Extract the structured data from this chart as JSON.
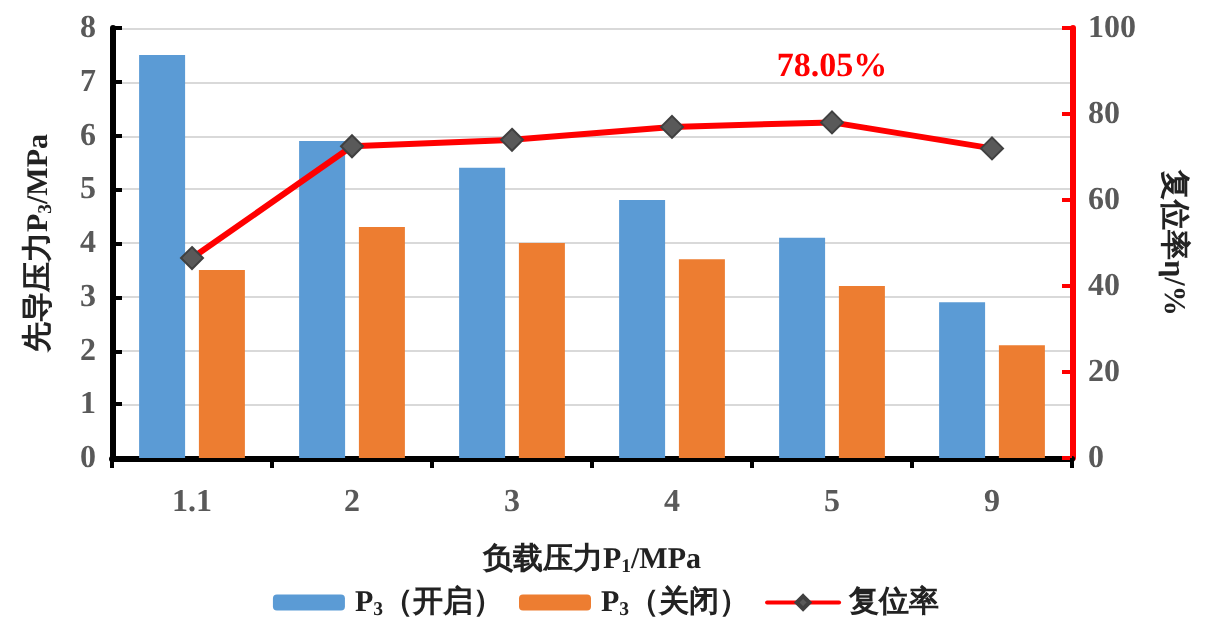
{
  "chart_data": {
    "type": "bar",
    "categories": [
      "1.1",
      "2",
      "3",
      "4",
      "5",
      "9"
    ],
    "series": [
      {
        "name": "P$_{3}$（开启）",
        "color": "#5b9bd5",
        "values": [
          7.5,
          5.9,
          5.4,
          4.8,
          4.1,
          2.9
        ]
      },
      {
        "name": "P$_{3}$（关闭）",
        "color": "#ed7d31",
        "values": [
          3.5,
          4.3,
          4.0,
          3.7,
          3.2,
          2.1
        ]
      },
      {
        "name": "复位率",
        "type": "line",
        "axis": "y2",
        "color": "#ff0000",
        "marker": "diamond",
        "values": [
          46.5,
          72.5,
          74,
          77,
          78.05,
          72
        ],
        "value_labels": [
          null,
          null,
          null,
          null,
          "78.05%",
          null
        ]
      }
    ],
    "xlabel": "负载压力P$_{1}$/MPa",
    "ylabel": "先导压力P$_{3}$/MPa",
    "y2label": "复位率η/%",
    "ylim": [
      0,
      8
    ],
    "yticks": [
      0,
      1,
      2,
      3,
      4,
      5,
      6,
      7,
      8
    ],
    "y2lim": [
      0,
      100
    ],
    "y2ticks": [
      0,
      20,
      40,
      60,
      80,
      100
    ],
    "grid": "y",
    "legend": "bottom"
  }
}
